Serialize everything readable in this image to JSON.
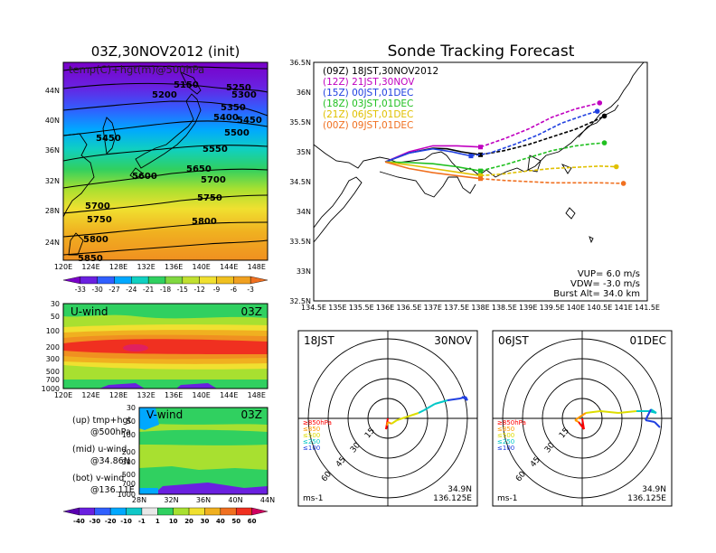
{
  "main_title": "Sonde Tracking Forecast",
  "map500": {
    "title": "03Z,30NOV2012 (init)",
    "label": "temp(C)+hgt(m)@500hPa",
    "lat_ticks": [
      "44N",
      "40N",
      "36N",
      "32N",
      "28N",
      "24N"
    ],
    "lon_ticks": [
      "120E",
      "124E",
      "128E",
      "132E",
      "136E",
      "140E",
      "144E",
      "148E"
    ],
    "hgt_labels": [
      "5150",
      "5200",
      "5250",
      "5300",
      "5350",
      "5400",
      "5450",
      "5450",
      "5500",
      "5550",
      "5600",
      "5650",
      "5700",
      "5700",
      "5750",
      "5750",
      "5800",
      "5800",
      "5850"
    ],
    "colorbar": [
      "-33",
      "-30",
      "-27",
      "-24",
      "-21",
      "-18",
      "-15",
      "-12",
      "-9",
      "-6",
      "-3"
    ]
  },
  "uwind": {
    "title": "U-wind",
    "time": "03Z",
    "p_ticks": [
      "30",
      "50",
      "100",
      "200",
      "300",
      "500",
      "700",
      "1000"
    ],
    "lon_ticks": [
      "120E",
      "124E",
      "128E",
      "132E",
      "136E",
      "140E",
      "144E",
      "148E"
    ]
  },
  "vwind": {
    "title": "V-wind",
    "time": "03Z",
    "p_ticks": [
      "30",
      "50",
      "100",
      "200",
      "300",
      "500",
      "700",
      "1000"
    ],
    "lat_ticks": [
      "28N",
      "32N",
      "36N",
      "40N",
      "44N"
    ],
    "colorbar": [
      "-40",
      "-30",
      "-20",
      "-10",
      "-1",
      "1",
      "10",
      "20",
      "30",
      "40",
      "50",
      "60"
    ]
  },
  "notes": {
    "up1": "(up) tmp+hgt",
    "up2": "@500hPa",
    "mid1": "(mid) u-wind",
    "mid2": "@34.86N",
    "bot1": "(bot) v-wind",
    "bot2": "@136.11E"
  },
  "chart_data": [
    {
      "type": "line",
      "title": "Sonde Tracking Forecast",
      "xlim": [
        134.5,
        141.5
      ],
      "ylim": [
        32.5,
        36.5
      ],
      "x_ticks": [
        "134.5E",
        "135E",
        "135.5E",
        "136E",
        "136.5E",
        "137E",
        "137.5E",
        "138E",
        "138.5E",
        "139E",
        "139.5E",
        "140E",
        "140.5E",
        "141E",
        "141.5E"
      ],
      "y_ticks": [
        "36.5N",
        "36N",
        "35.5N",
        "35N",
        "34.5N",
        "34N",
        "33.5N",
        "33N",
        "32.5N"
      ],
      "series": [
        {
          "name": "(09Z)  18JST,30NOV2012",
          "color": "#000000",
          "lon": [
            136.0,
            136.5,
            137.0,
            137.3,
            137.6,
            138.0,
            138.5,
            139.0,
            139.5,
            140.0,
            140.4,
            140.6
          ],
          "lat": [
            34.83,
            34.98,
            35.06,
            35.05,
            35.0,
            34.95,
            35.02,
            35.12,
            35.25,
            35.38,
            35.52,
            35.6
          ]
        },
        {
          "name": "(12Z)  21JST,30NOV",
          "color": "#c000c0",
          "lon": [
            136.0,
            136.5,
            137.0,
            137.5,
            138.0,
            138.5,
            139.0,
            139.5,
            140.0,
            140.4,
            140.5
          ],
          "lat": [
            34.83,
            35.0,
            35.1,
            35.1,
            35.08,
            35.22,
            35.38,
            35.58,
            35.72,
            35.8,
            35.82
          ]
        },
        {
          "name": "(15Z)  00JST,01DEC",
          "color": "#2040e0",
          "lon": [
            136.0,
            136.5,
            137.0,
            137.4,
            137.8,
            138.2,
            138.7,
            139.2,
            139.7,
            140.2,
            140.45
          ],
          "lat": [
            34.83,
            34.98,
            35.05,
            35.0,
            34.93,
            34.98,
            35.12,
            35.28,
            35.48,
            35.62,
            35.68
          ]
        },
        {
          "name": "(18Z)  03JST,01DEC",
          "color": "#20c020",
          "lon": [
            136.0,
            136.5,
            137.0,
            137.5,
            138.0,
            138.5,
            139.0,
            139.5,
            140.0,
            140.3,
            140.6
          ],
          "lat": [
            34.83,
            34.82,
            34.8,
            34.75,
            34.68,
            34.78,
            34.9,
            35.02,
            35.1,
            35.13,
            35.15
          ]
        },
        {
          "name": "(21Z)  06JST,01DEC",
          "color": "#e0c000",
          "lon": [
            136.0,
            136.5,
            137.0,
            137.5,
            138.0,
            138.5,
            139.0,
            139.5,
            140.0,
            140.5,
            140.85
          ],
          "lat": [
            34.83,
            34.78,
            34.72,
            34.66,
            34.6,
            34.63,
            34.68,
            34.72,
            34.74,
            34.76,
            34.75
          ]
        },
        {
          "name": "(00Z)  09JST,01DEC",
          "color": "#f07020",
          "lon": [
            136.0,
            136.5,
            137.0,
            137.5,
            138.0,
            138.5,
            139.0,
            139.5,
            140.0,
            140.5,
            141.0
          ],
          "lat": [
            34.83,
            34.72,
            34.65,
            34.6,
            34.55,
            34.52,
            34.5,
            34.48,
            34.48,
            34.48,
            34.47
          ]
        }
      ],
      "params": [
        "VUP= 6.0  m/s",
        "VDW= -3.0  m/s",
        "Burst Alt= 34.0  km"
      ]
    },
    {
      "type": "line",
      "title_left": "18JST",
      "title_right": "30NOV",
      "rings": [
        "15",
        "30",
        "45",
        "60"
      ],
      "pressure_legend": [
        "≥850hPa",
        "≤850",
        "≤500",
        "≤250",
        "≤100"
      ],
      "legend_colors": [
        "#ff0000",
        "#ff9900",
        "#dddd00",
        "#00c8c8",
        "#2040e0"
      ],
      "unit": "ms-1",
      "loc1": "34.9N",
      "loc2": "136.125E"
    },
    {
      "type": "line",
      "title_left": "06JST",
      "title_right": "01DEC",
      "rings": [
        "15",
        "30",
        "45",
        "60"
      ],
      "pressure_legend": [
        "≥850hPa",
        "≤850",
        "≤500",
        "≤250",
        "≤100"
      ],
      "legend_colors": [
        "#ff0000",
        "#ff9900",
        "#dddd00",
        "#00c8c8",
        "#2040e0"
      ],
      "unit": "ms-1",
      "loc1": "34.9N",
      "loc2": "136.125E"
    }
  ]
}
